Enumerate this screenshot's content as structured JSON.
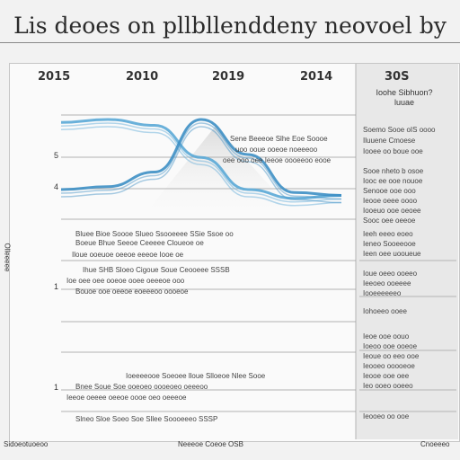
{
  "title": "Lis deoes on pllbllenddeny neovoel by",
  "chart_data": {
    "type": "line",
    "x_labels": [
      "2015",
      "2010",
      "2019",
      "2014",
      "30S"
    ],
    "y_tick_labels": [
      "5",
      "4",
      "1",
      "1"
    ],
    "series": [
      {
        "values": [
          3.5,
          3.6,
          3.4,
          2.3,
          1.2,
          0.9,
          1.0
        ]
      },
      {
        "values": [
          1.2,
          1.3,
          1.8,
          3.6,
          2.4,
          1.1,
          1.0
        ]
      }
    ],
    "side_panel_title": "Ioohe Sibhuon? luuae",
    "side_notes": [
      "Soemo Sooe oIS oooo",
      "Iluuene Cmoese",
      "Iooee oo boue ooe",
      "Sooe nheto b osoe",
      "Iooc ee ooe nouoe",
      "Senooe ooe ooo",
      "Ieooe oeee oooo",
      "Iooeuo ooe oeoee",
      "Sooc oee oeeoe",
      "Ieeh eeeo eoeo",
      "Ieneo Sooeeooe",
      "Ieen oee uooueue",
      "Ioue oeeo ooeeo",
      "Ieeoeo ooeeee",
      "Iooeeeeeeo",
      "Iohoeeo ooee",
      "Ieoe ooe oouo",
      "Ioeoo ooe ooeoe",
      "Ieoue oo eeo ooe",
      "Ieooeo ooooeoe",
      "Ieooe ooe oee",
      "Ieo ooeo ooeeo",
      "Ieooeo oo ooe"
    ],
    "annotations": [
      "Sene Beeeoe Slhe Eoe Soooe",
      "uoo ooue ooeoe noeeeoo",
      "oee ooo oee Ieeoe oooeeoo eooe",
      "Bluee Bioe Soooe Slueo Ssooeeee SSie Ssoe oo",
      "Boeue Bhue Seeoe Ceeeee Cloueoe oe",
      "Iloue ooeuoe oeeoe eeeoe Iooe oe",
      "Ihue SHB Sloeo Cigoue Soue Ceooeee SSSB",
      "Ioe oee oee ooeoe ooee oeeeoe ooo",
      "Bouoe ooe oeeoe eoeeeoo oooeoe",
      "Ioeeeeooe Soeoee lloue Slloeoe Nlee Sooe",
      "Bnee Soue Soe ooeoeo oooeoeo oeeeoo",
      "Ieeoe oeeee oeeoe oooe oeo oeeeoe",
      "Slneo Sloe Soeo Soe Sllee Soooeeeo SSSP"
    ],
    "footer_left": "Sidoeotuoeoo",
    "footer_center": "Neeeoe Coeoe OSB",
    "footer_right": "Cnoeeeo",
    "side_axis_label": "Olleeeee"
  }
}
